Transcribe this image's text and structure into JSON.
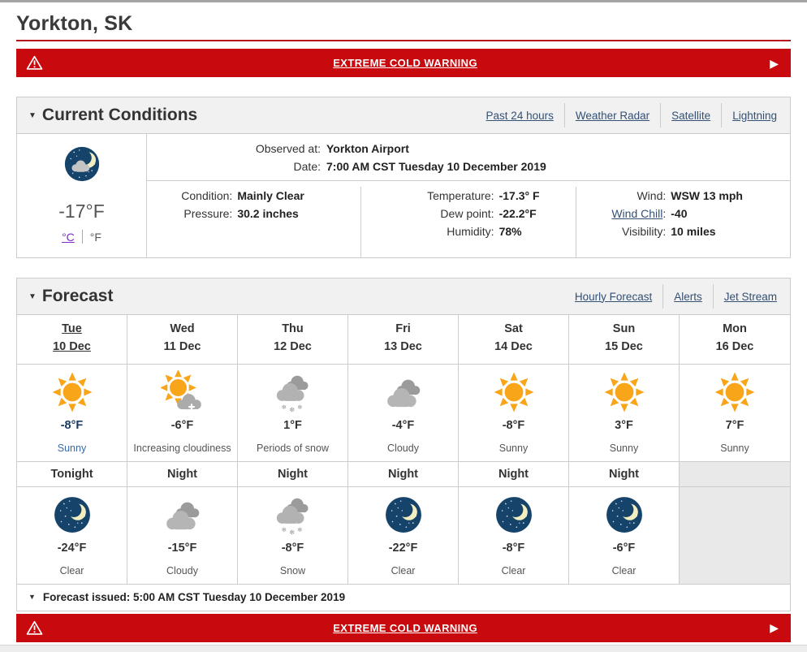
{
  "colors": {
    "banner_red": "#c8090d",
    "title_rule_red": "#b5121b",
    "link_blue": "#335075",
    "visited_purple": "#7d2bc9",
    "sun_orange": "#f9a51a",
    "night_navy": "#16436a"
  },
  "glyphs": {
    "collapse": "▼",
    "banner_arrow": "▶"
  },
  "page": {
    "title": "Yorkton, SK"
  },
  "warning": {
    "label": "EXTREME COLD WARNING",
    "icon": "warning-triangle"
  },
  "current_conditions": {
    "heading": "Current Conditions",
    "links": [
      "Past 24 hours",
      "Weather Radar",
      "Satellite",
      "Lightning"
    ],
    "summary": {
      "icon": "cloudy-night",
      "temperature": "-17°F",
      "celsius": "°C",
      "fahrenheit": "°F"
    },
    "observed": {
      "observed_at_label": "Observed at:",
      "observed_at_value": "Yorkton Airport",
      "date_label": "Date:",
      "date_value": "7:00 AM CST Tuesday 10 December 2019"
    },
    "col1": {
      "r1_label": "Condition:",
      "r1_value": "Mainly Clear",
      "r2_label": "Pressure:",
      "r2_value": "30.2 inches"
    },
    "col2": {
      "r1_label": "Temperature:",
      "r1_value": "-17.3° F",
      "r2_label": "Dew point:",
      "r2_value": "-22.2°F",
      "r3_label": "Humidity:",
      "r3_value": "78%"
    },
    "col3": {
      "r1_label": "Wind:",
      "r1_value": "WSW 13 mph",
      "r2_label": "Wind Chill",
      "r2_colon": ":",
      "r2_value": "-40",
      "r3_label": "Visibility:",
      "r3_value": "10 miles"
    }
  },
  "forecast": {
    "heading": "Forecast",
    "links": [
      "Hourly Forecast",
      "Alerts",
      "Jet Stream"
    ],
    "issued": "Forecast issued: 5:00 AM CST Tuesday 10 December 2019",
    "days": [
      {
        "day": "Tue",
        "date": "10 Dec",
        "icon": "sunny",
        "temp": "-8°F",
        "desc": "Sunny"
      },
      {
        "day": "Wed",
        "date": "11 Dec",
        "icon": "increasing-cloud",
        "temp": "-6°F",
        "desc": "Increasing cloudiness"
      },
      {
        "day": "Thu",
        "date": "12 Dec",
        "icon": "snow",
        "temp": "1°F",
        "desc": "Periods of snow"
      },
      {
        "day": "Fri",
        "date": "13 Dec",
        "icon": "cloudy",
        "temp": "-4°F",
        "desc": "Cloudy"
      },
      {
        "day": "Sat",
        "date": "14 Dec",
        "icon": "sunny",
        "temp": "-8°F",
        "desc": "Sunny"
      },
      {
        "day": "Sun",
        "date": "15 Dec",
        "icon": "sunny",
        "temp": "3°F",
        "desc": "Sunny"
      },
      {
        "day": "Mon",
        "date": "16 Dec",
        "icon": "sunny",
        "temp": "7°F",
        "desc": "Sunny"
      }
    ],
    "nights": [
      {
        "label": "Tonight",
        "icon": "clear-night",
        "temp": "-24°F",
        "desc": "Clear"
      },
      {
        "label": "Night",
        "icon": "cloudy",
        "temp": "-15°F",
        "desc": "Cloudy"
      },
      {
        "label": "Night",
        "icon": "snow",
        "temp": "-8°F",
        "desc": "Snow"
      },
      {
        "label": "Night",
        "icon": "clear-night",
        "temp": "-22°F",
        "desc": "Clear"
      },
      {
        "label": "Night",
        "icon": "clear-night",
        "temp": "-8°F",
        "desc": "Clear"
      },
      {
        "label": "Night",
        "icon": "clear-night",
        "temp": "-6°F",
        "desc": "Clear"
      },
      {
        "label": "",
        "icon": "",
        "temp": "",
        "desc": ""
      }
    ]
  }
}
